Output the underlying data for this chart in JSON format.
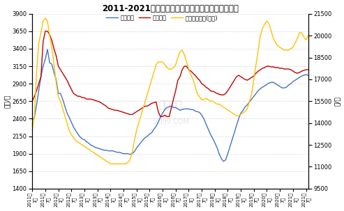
{
  "title": "2011-2021年中国钛白粉进出口及国内月度均价走势",
  "ylabel_left": "美元/吨",
  "ylabel_right": "元/吨",
  "ylim_left": [
    1400,
    3900
  ],
  "ylim_right": [
    9500,
    21500
  ],
  "yticks_left": [
    1400,
    1650,
    1900,
    2150,
    2400,
    2650,
    2900,
    3150,
    3400,
    3650,
    3900
  ],
  "yticks_right": [
    9500,
    11000,
    12500,
    14000,
    15500,
    17000,
    18500,
    20000,
    21500
  ],
  "legend_labels": [
    "出口均价",
    "进口均价",
    "国内市场均价(右轴)"
  ],
  "line_colors": [
    "#4472C4",
    "#C00000",
    "#FFC000"
  ],
  "bg_color": "#FFFFFF",
  "grid_color": "#D9D9D9",
  "title_color": "#000000",
  "xtick_labels": [
    "2011年\n1月",
    "2011年\n7月",
    "2012年\n1月",
    "2012年\n7月",
    "2013年\n1月",
    "2013年\n7月",
    "2014年\n1月",
    "2014年\n7月",
    "2015年\n1月",
    "2015年\n7月",
    "2016年\n1月",
    "2016年\n7月",
    "2017年\n1月",
    "2017年\n7月",
    "2018年\n1月",
    "2018年\n7月",
    "2019年\n1月",
    "2019年\n7月",
    "2020年\n1月",
    "2020年\n7月",
    "2021年\n1月",
    "2021年\n7月"
  ],
  "export_price": [
    2380,
    2420,
    2600,
    2800,
    3000,
    3150,
    3250,
    3390,
    3200,
    3180,
    3060,
    2960,
    2760,
    2760,
    2680,
    2580,
    2480,
    2420,
    2350,
    2280,
    2230,
    2180,
    2140,
    2110,
    2100,
    2070,
    2050,
    2020,
    2010,
    1990,
    1980,
    1970,
    1960,
    1950,
    1950,
    1940,
    1940,
    1940,
    1930,
    1920,
    1920,
    1910,
    1900,
    1900,
    1900,
    1890,
    1900,
    1930,
    1980,
    2020,
    2060,
    2100,
    2130,
    2150,
    2180,
    2200,
    2250,
    2290,
    2350,
    2420,
    2480,
    2530,
    2560,
    2570,
    2580,
    2560,
    2560,
    2540,
    2520,
    2530,
    2540,
    2540,
    2540,
    2530,
    2530,
    2510,
    2500,
    2490,
    2450,
    2400,
    2320,
    2250,
    2180,
    2120,
    2060,
    1990,
    1900,
    1830,
    1790,
    1810,
    1900,
    2000,
    2100,
    2200,
    2300,
    2400,
    2480,
    2520,
    2570,
    2600,
    2640,
    2680,
    2720,
    2760,
    2800,
    2830,
    2850,
    2870,
    2890,
    2910,
    2920,
    2920,
    2900,
    2880,
    2860,
    2840,
    2840,
    2850,
    2880,
    2900,
    2930,
    2950,
    2970,
    2990,
    3010,
    3020,
    3030,
    3020
  ],
  "import_price": [
    2650,
    2720,
    2800,
    2900,
    3000,
    3500,
    3650,
    3650,
    3600,
    3520,
    3400,
    3300,
    3150,
    3100,
    3050,
    3000,
    2950,
    2880,
    2820,
    2760,
    2740,
    2720,
    2720,
    2700,
    2700,
    2680,
    2680,
    2680,
    2670,
    2660,
    2650,
    2640,
    2620,
    2600,
    2580,
    2550,
    2540,
    2530,
    2520,
    2520,
    2510,
    2500,
    2490,
    2480,
    2470,
    2460,
    2460,
    2480,
    2500,
    2520,
    2540,
    2560,
    2580,
    2580,
    2600,
    2620,
    2630,
    2640,
    2500,
    2430,
    2430,
    2450,
    2430,
    2430,
    2550,
    2680,
    2800,
    2950,
    3000,
    3100,
    3150,
    3150,
    3100,
    3080,
    3050,
    3020,
    2980,
    2950,
    2900,
    2880,
    2850,
    2830,
    2800,
    2790,
    2780,
    2760,
    2750,
    2740,
    2740,
    2760,
    2800,
    2850,
    2900,
    2950,
    3000,
    3020,
    3000,
    2980,
    2960,
    2950,
    2970,
    2990,
    3010,
    3050,
    3080,
    3100,
    3120,
    3130,
    3150,
    3150,
    3140,
    3140,
    3130,
    3130,
    3120,
    3120,
    3110,
    3110,
    3110,
    3100,
    3080,
    3060,
    3050,
    3060,
    3080,
    3090,
    3100,
    3100
  ],
  "domestic_price": [
    13500,
    14500,
    17500,
    19500,
    20200,
    21000,
    21200,
    21000,
    20000,
    19200,
    18000,
    16800,
    15800,
    15500,
    15000,
    14500,
    14000,
    13500,
    13200,
    13000,
    12800,
    12700,
    12600,
    12500,
    12400,
    12300,
    12200,
    12100,
    12000,
    11900,
    11800,
    11700,
    11600,
    11500,
    11400,
    11300,
    11200,
    11200,
    11200,
    11200,
    11200,
    11200,
    11200,
    11200,
    11300,
    11500,
    12000,
    12800,
    13500,
    14000,
    14500,
    15000,
    15500,
    16000,
    16500,
    17000,
    17500,
    18000,
    18200,
    18200,
    18200,
    18000,
    17800,
    17700,
    17700,
    17800,
    18000,
    18500,
    18900,
    19000,
    18700,
    18200,
    17700,
    17300,
    17000,
    16500,
    16000,
    15800,
    15600,
    15600,
    15700,
    15600,
    15500,
    15500,
    15400,
    15300,
    15300,
    15200,
    15100,
    15000,
    14900,
    14800,
    14700,
    14600,
    14500,
    14500,
    14600,
    14700,
    14800,
    15000,
    15500,
    16000,
    17000,
    18000,
    19000,
    20000,
    20500,
    20800,
    21000,
    20800,
    20300,
    19800,
    19500,
    19300,
    19200,
    19100,
    19000,
    19000,
    19000,
    19100,
    19200,
    19500,
    19800,
    20200,
    20200,
    19900,
    19700,
    20000
  ]
}
